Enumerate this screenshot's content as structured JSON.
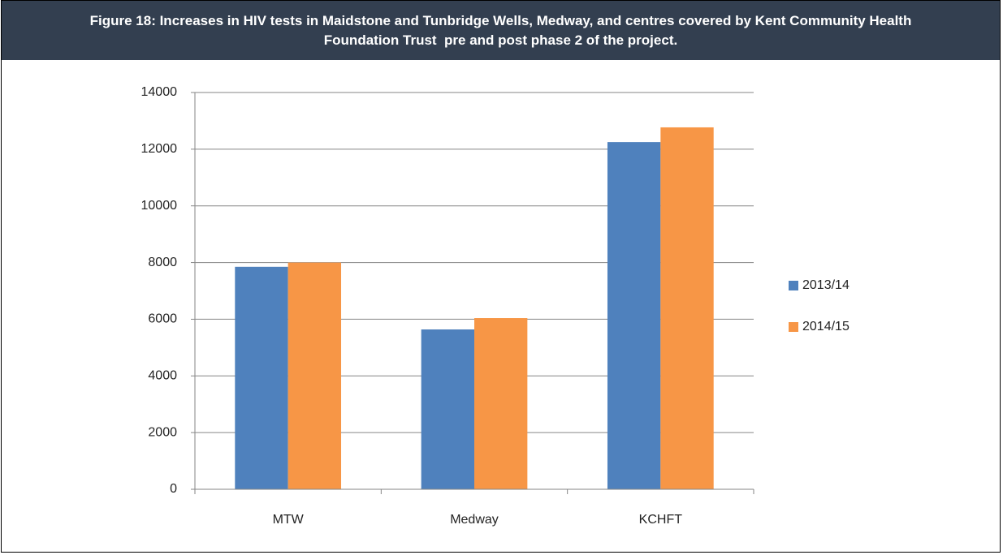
{
  "chart_data": {
    "type": "bar",
    "title": "Figure 18: Increases in HIV tests in Maidstone and Tunbridge Wells, Medway, and centres covered by Kent Community Health Foundation Trust  pre and post phase 2 of the project.",
    "categories": [
      "MTW",
      "Medway",
      "KCHFT"
    ],
    "series": [
      {
        "name": "2013/14",
        "color": "#4f81bd",
        "values": [
          7850,
          5640,
          12250
        ]
      },
      {
        "name": "2014/15",
        "color": "#f79646",
        "values": [
          8000,
          6040,
          12770
        ]
      }
    ],
    "ylim": [
      0,
      14000
    ],
    "yticks": [
      0,
      2000,
      4000,
      6000,
      8000,
      10000,
      12000,
      14000
    ],
    "grid": true,
    "legend": "right"
  }
}
